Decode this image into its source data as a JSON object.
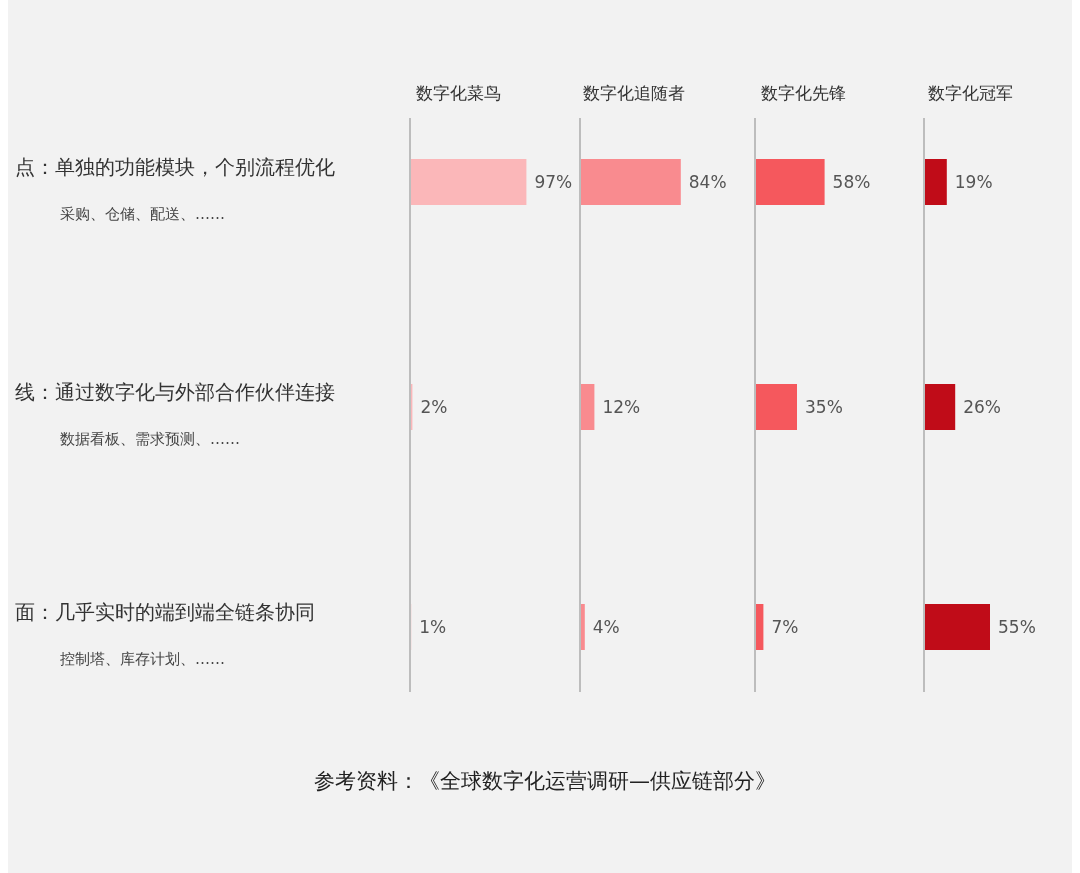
{
  "chart_data": [
    {
      "type": "bar",
      "orientation": "horizontal",
      "title": "数字化菜鸟",
      "categories": [
        "点：单独的功能模块，个别流程优化",
        "线：通过数字化与外部合作伙伴连接",
        "面：几乎实时的端到端全链条协同"
      ],
      "values": [
        97,
        2,
        1
      ],
      "value_labels": [
        "97%",
        "2%",
        "1%"
      ],
      "color": "#fbb7b9",
      "tick_labels": "y",
      "annotations": [
        "采购、仓储、配送、……",
        "数据看板、需求预测、……",
        "控制塔、库存计划、……",
        "参考资料：《全球数字化运营调研—供应链部分》"
      ]
    },
    {
      "type": "bar",
      "orientation": "horizontal",
      "title": "数字化追随者",
      "categories": [
        null,
        null,
        null
      ],
      "values": [
        84,
        12,
        4
      ],
      "value_labels": [
        "84%",
        "12%",
        "4%"
      ],
      "color": "#f98b8f",
      "tick_labels": false
    },
    {
      "type": "bar",
      "orientation": "horizontal",
      "title": "数字化先锋",
      "categories": [
        null,
        null,
        null
      ],
      "values": [
        58,
        35,
        7
      ],
      "value_labels": [
        "58%",
        "35%",
        "7%"
      ],
      "color": "#f5585d",
      "tick_labels": false
    },
    {
      "type": "bar",
      "orientation": "horizontal",
      "title": "数字化冠军",
      "categories": [
        null,
        null,
        null
      ],
      "values": [
        19,
        26,
        55
      ],
      "value_labels": [
        "19%",
        "26%",
        "55%"
      ],
      "color": "#c00c18",
      "tick_labels": false
    }
  ]
}
